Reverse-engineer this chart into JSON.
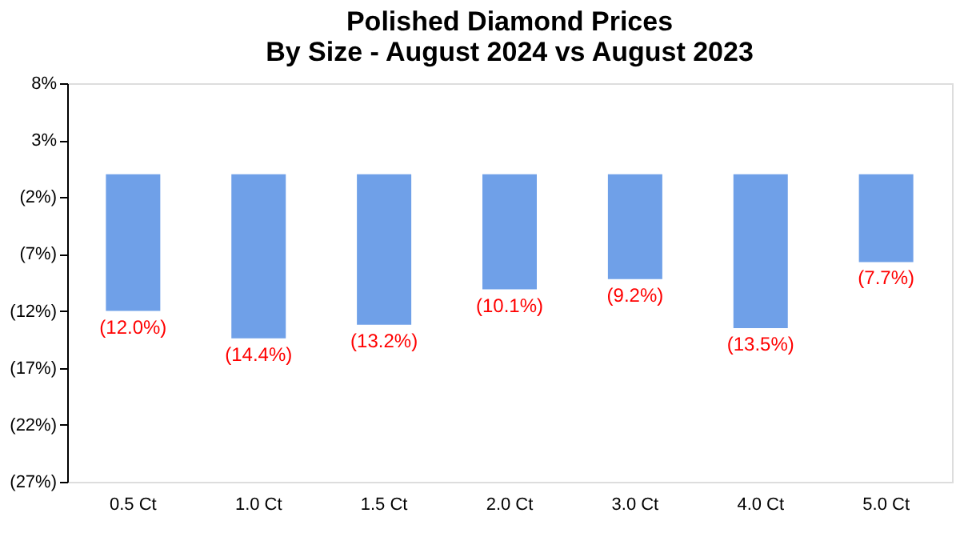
{
  "chart_data": {
    "type": "bar",
    "title": "Polished Diamond Prices\nBy Size - August 2024 vs August 2023",
    "categories": [
      "0.5 Ct",
      "1.0 Ct",
      "1.5 Ct",
      "2.0 Ct",
      "3.0 Ct",
      "4.0 Ct",
      "5.0 Ct"
    ],
    "values": [
      -12.0,
      -14.4,
      -13.2,
      -10.1,
      -9.2,
      -13.5,
      -7.7
    ],
    "value_labels": [
      "(12.0%)",
      "(14.4%)",
      "(13.2%)",
      "(10.1%)",
      "(9.2%)",
      "(13.5%)",
      "(7.7%)"
    ],
    "color": "#6fa0e8",
    "ylim": [
      -27,
      8
    ],
    "yticks": [
      {
        "value": 8,
        "label": "8%"
      },
      {
        "value": 3,
        "label": "3%"
      },
      {
        "value": -2,
        "label": "(2%)"
      },
      {
        "value": -7,
        "label": "(7%)"
      },
      {
        "value": -12,
        "label": "(12%)"
      },
      {
        "value": -17,
        "label": "(17%)"
      },
      {
        "value": -22,
        "label": "(22%)"
      },
      {
        "value": -27,
        "label": "(27%)"
      }
    ],
    "grid": false
  }
}
